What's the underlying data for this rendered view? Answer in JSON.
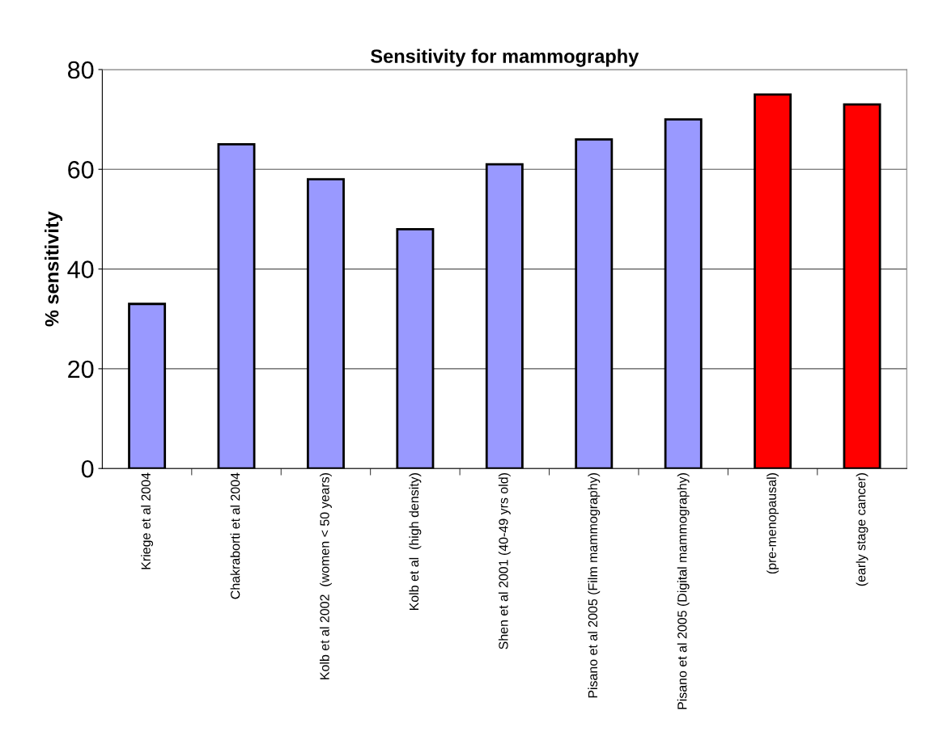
{
  "chart_data": {
    "type": "bar",
    "title": "Sensitivity for mammography",
    "ylabel": "% sensitivity",
    "categories": [
      "Kriege et al 2004",
      "Chakraborti et al 2004",
      "Kolb et al 2002  (women < 50 years)",
      "Kolb et al  (high density)",
      "Shen et al 2001 (40-49 yrs old)",
      "Pisano et al 2005 (Film mammography)",
      "Pisano et al 2005 (Digital mammography)",
      "(pre-menopausal)",
      "(early stage cancer)"
    ],
    "values": [
      33,
      65,
      58,
      48,
      61,
      66,
      70,
      75,
      73
    ],
    "colors": [
      "#9999ff",
      "#9999ff",
      "#9999ff",
      "#9999ff",
      "#9999ff",
      "#9999ff",
      "#9999ff",
      "#ff0000",
      "#ff0000"
    ],
    "ylim": [
      0,
      80
    ],
    "yticks": [
      0,
      20,
      40,
      60,
      80
    ],
    "grid": "y"
  }
}
